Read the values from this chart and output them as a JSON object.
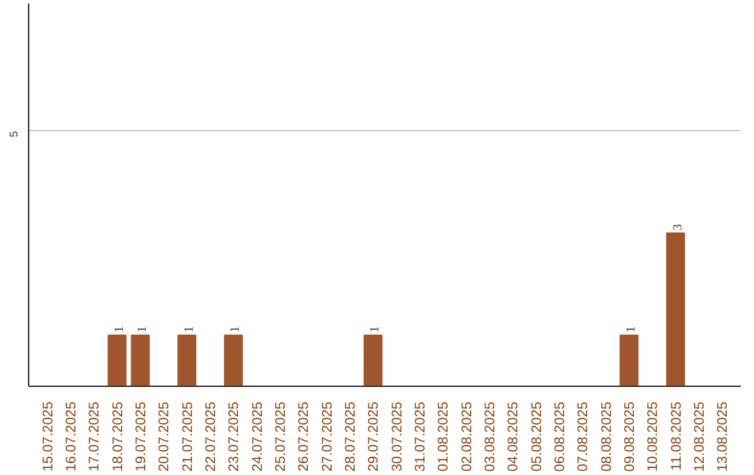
{
  "chart_data": {
    "type": "bar",
    "categories": [
      "15.07.2025",
      "16.07.2025",
      "17.07.2025",
      "18.07.2025",
      "19.07.2025",
      "20.07.2025",
      "21.07.2025",
      "22.07.2025",
      "23.07.2025",
      "24.07.2025",
      "25.07.2025",
      "26.07.2025",
      "27.07.2025",
      "28.07.2025",
      "29.07.2025",
      "30.07.2025",
      "31.07.2025",
      "01.08.2025",
      "02.08.2025",
      "03.08.2025",
      "04.08.2025",
      "05.08.2025",
      "06.08.2025",
      "07.08.2025",
      "08.08.2025",
      "09.08.2025",
      "10.08.2025",
      "11.08.2025",
      "12.08.2025",
      "13.08.2025"
    ],
    "values": [
      0,
      0,
      0,
      1,
      1,
      0,
      1,
      0,
      1,
      0,
      0,
      0,
      0,
      0,
      1,
      0,
      0,
      0,
      0,
      0,
      0,
      0,
      0,
      0,
      0,
      1,
      0,
      3,
      0,
      0
    ],
    "value_labels": [
      null,
      null,
      null,
      "1",
      "1",
      null,
      "1",
      null,
      "1",
      null,
      null,
      null,
      null,
      null,
      "1",
      null,
      null,
      null,
      null,
      null,
      null,
      null,
      null,
      null,
      null,
      "1",
      null,
      "3",
      null,
      null
    ],
    "color": "#a0562c",
    "ylim": [
      0,
      7.5
    ],
    "yticks": [
      5
    ],
    "grid": "y"
  }
}
